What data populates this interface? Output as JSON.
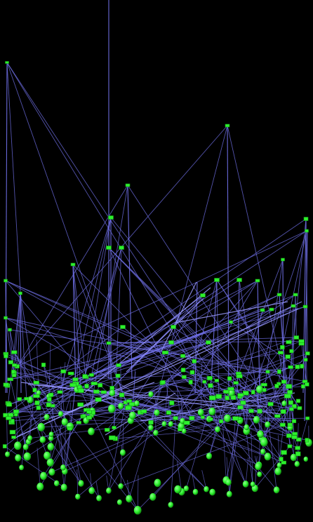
{
  "scene": {
    "background": "#000000",
    "edge_color": "#6f6fe6",
    "edge_color_bright": "#9a9aff",
    "node_color": "#2df02d",
    "node_color_dark": "#149c14",
    "node_shapes": [
      "box",
      "sphere"
    ]
  }
}
